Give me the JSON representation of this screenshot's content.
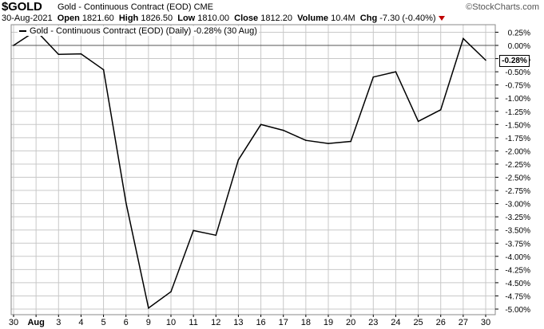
{
  "header": {
    "symbol": "$GOLD",
    "name": "Gold - Continuous Contract (EOD)",
    "exchange": "CME",
    "watermark": "©StockCharts.com",
    "date": "30-Aug-2021",
    "open_label": "Open",
    "open": "1821.60",
    "high_label": "High",
    "high": "1826.50",
    "low_label": "Low",
    "low": "1810.00",
    "close_label": "Close",
    "close": "1812.20",
    "volume_label": "Volume",
    "volume": "10.4M",
    "chg_label": "Chg",
    "chg": "-7.30 (-0.40%)"
  },
  "legend": "Gold - Continuous Contract (EOD) (Daily) -0.28% (30 Aug)",
  "last_value_label": "-0.28%",
  "colors": {
    "line": "#000000",
    "grid": "#c8c8c8",
    "zero_line": "#555555",
    "down_arrow": "#c00000"
  },
  "chart_data": {
    "type": "line",
    "title": "",
    "xlabel": "",
    "ylabel": "",
    "grid": true,
    "legend_position": "top-left",
    "y_axis_position": "right",
    "ylim": [
      -5.1,
      0.4
    ],
    "yticks": [
      0.25,
      0.0,
      -0.25,
      -0.5,
      -0.75,
      -1.0,
      -1.25,
      -1.5,
      -1.75,
      -2.0,
      -2.25,
      -2.5,
      -2.75,
      -3.0,
      -3.25,
      -3.5,
      -3.75,
      -4.0,
      -4.25,
      -4.5,
      -4.75,
      -5.0
    ],
    "ytick_labels": [
      "0.25%",
      "0.00%",
      "-0.25%",
      "-0.50%",
      "-0.75%",
      "-1.00%",
      "-1.25%",
      "-1.50%",
      "-1.75%",
      "-2.00%",
      "-2.25%",
      "-2.50%",
      "-2.75%",
      "-3.00%",
      "-3.25%",
      "-3.50%",
      "-3.75%",
      "-4.00%",
      "-4.25%",
      "-4.50%",
      "-4.75%",
      "-5.00%"
    ],
    "categories": [
      "30",
      "Aug",
      "3",
      "4",
      "5",
      "6",
      "9",
      "10",
      "11",
      "12",
      "13",
      "16",
      "17",
      "18",
      "19",
      "20",
      "23",
      "24",
      "25",
      "26",
      "27",
      "30"
    ],
    "series": [
      {
        "values": [
          0.0,
          0.28,
          -0.17,
          -0.16,
          -0.46,
          -2.98,
          -4.98,
          -4.67,
          -3.51,
          -3.6,
          -2.17,
          -1.5,
          -1.61,
          -1.8,
          -1.86,
          -1.82,
          -0.6,
          -0.5,
          -1.44,
          -1.22,
          0.13,
          -0.28
        ]
      }
    ]
  }
}
